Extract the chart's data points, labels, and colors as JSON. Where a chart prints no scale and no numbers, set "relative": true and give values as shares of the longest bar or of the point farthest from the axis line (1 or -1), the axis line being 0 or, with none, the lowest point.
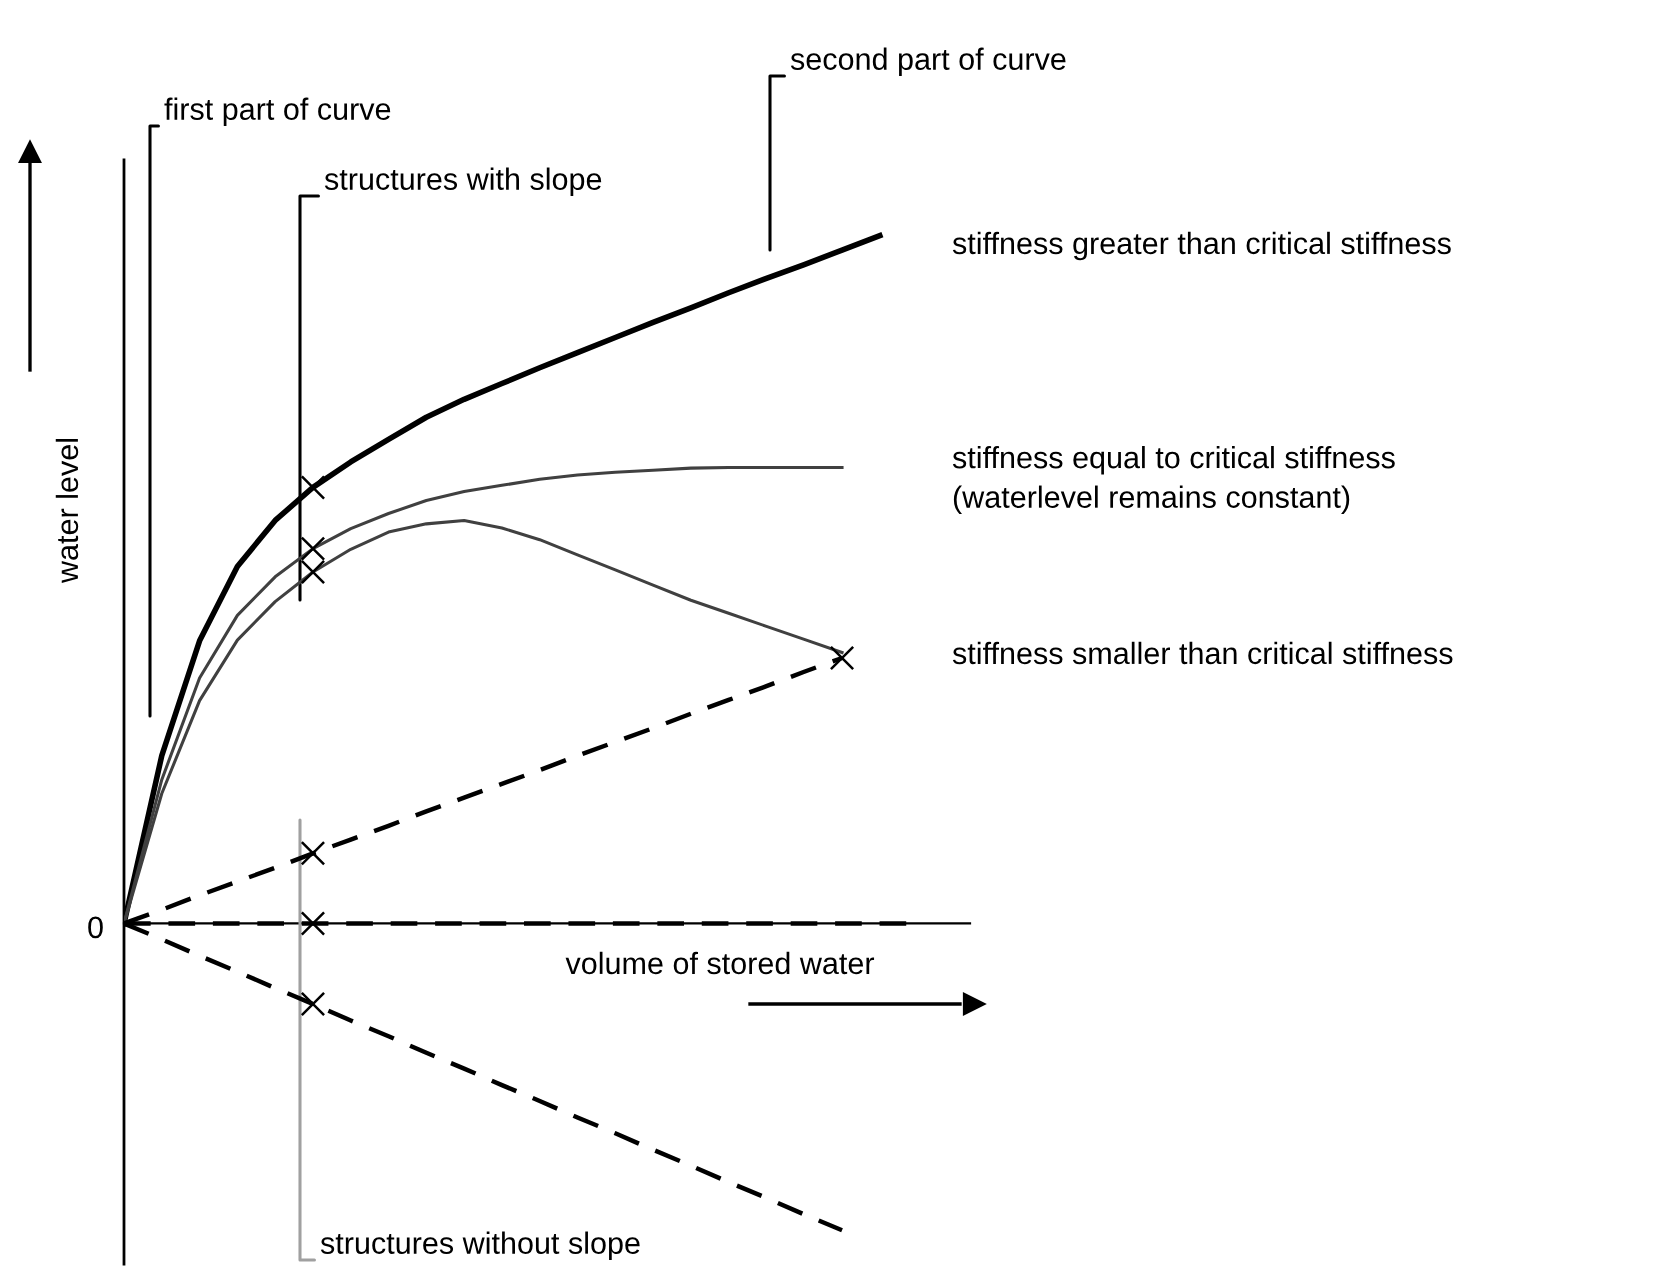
{
  "chart_data": {
    "type": "line",
    "relative": true,
    "xlabel": "volume of stored water",
    "ylabel": "water level",
    "categories": [
      null,
      null,
      null,
      null,
      null,
      null,
      null,
      null,
      null,
      null,
      null,
      null,
      null,
      null,
      null,
      null,
      null,
      null,
      null,
      null,
      null,
      null
    ],
    "series": [
      {
        "color": "#000000",
        "line_style": "solid",
        "values": [
          0,
          0.244,
          0.411,
          0.519,
          0.586,
          0.634,
          0.671,
          0.704,
          0.736,
          0.762,
          0.785,
          0.808,
          0.83,
          0.852,
          0.874,
          0.895,
          0.917,
          0.938,
          0.958,
          0.979,
          1,
          null
        ]
      },
      {
        "color": "#404040",
        "line_style": "solid",
        "values": [
          0,
          0.209,
          0.357,
          0.448,
          0.504,
          0.545,
          0.574,
          0.596,
          0.615,
          0.628,
          0.637,
          0.646,
          0.652,
          0.656,
          0.659,
          0.662,
          0.663,
          0.663,
          0.663,
          0.663,
          null,
          null
        ]
      },
      {
        "color": "#404040",
        "line_style": "solid",
        "values": [
          0,
          0.189,
          0.324,
          0.412,
          0.468,
          0.511,
          0.544,
          0.569,
          0.581,
          0.586,
          0.575,
          0.558,
          0.536,
          0.514,
          0.492,
          0.47,
          0.451,
          0.432,
          0.413,
          0.394,
          null,
          null
        ]
      },
      {
        "color": "#000000",
        "line_style": "dashed",
        "values": [
          0,
          0.02,
          0.041,
          0.061,
          0.081,
          0.102,
          0.122,
          0.142,
          0.163,
          0.183,
          0.203,
          0.223,
          0.244,
          0.264,
          0.284,
          0.305,
          0.325,
          0.345,
          0.366,
          0.386,
          null,
          null
        ]
      },
      {
        "color": "#000000",
        "line_style": "dashed",
        "values": [
          0,
          0,
          0,
          0,
          0,
          0,
          0,
          0,
          0,
          0,
          0,
          0,
          0,
          0,
          0,
          0,
          0,
          0,
          0,
          0,
          0,
          0
        ]
      },
      {
        "color": "#000000",
        "line_style": "dashed",
        "values": [
          0,
          -0.023,
          -0.047,
          -0.07,
          -0.094,
          -0.117,
          -0.141,
          -0.164,
          -0.188,
          -0.211,
          -0.235,
          -0.258,
          -0.282,
          -0.305,
          -0.329,
          -0.352,
          -0.376,
          -0.399,
          -0.423,
          -0.446,
          null,
          null
        ]
      }
    ],
    "annotations": [
      "first part of curve",
      "second part of curve",
      "structures with slope",
      "structures without slope",
      "stiffness greater than critical stiffness",
      "stiffness equal to critical stiffness\n(waterlevel remains constant)",
      "stiffness smaller than critical stiffness",
      "0"
    ]
  }
}
